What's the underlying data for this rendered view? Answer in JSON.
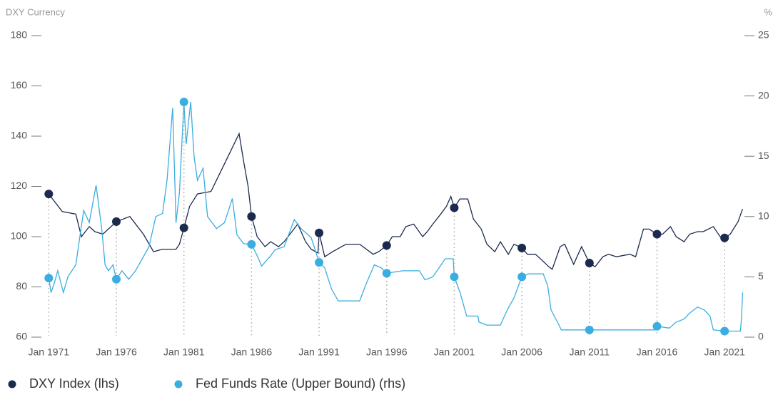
{
  "chart_data": {
    "type": "line",
    "y_label": "DXY Currency",
    "y2_label": "%",
    "xlim": [
      "1970-09",
      "2022-06"
    ],
    "xticks": [
      {
        "value": "1971-01",
        "label": "Jan 1971"
      },
      {
        "value": "1976-01",
        "label": "Jan 1976"
      },
      {
        "value": "1981-01",
        "label": "Jan 1981"
      },
      {
        "value": "1986-01",
        "label": "Jan 1986"
      },
      {
        "value": "1991-01",
        "label": "Jan 1991"
      },
      {
        "value": "1996-01",
        "label": "Jan 1996"
      },
      {
        "value": "2001-01",
        "label": "Jan 2001"
      },
      {
        "value": "2006-01",
        "label": "Jan 2006"
      },
      {
        "value": "2011-01",
        "label": "Jan 2011"
      },
      {
        "value": "2016-01",
        "label": "Jan 2016"
      },
      {
        "value": "2021-01",
        "label": "Jan 2021"
      }
    ],
    "ylim": [
      60,
      180
    ],
    "yticks": [
      60,
      80,
      100,
      120,
      140,
      160,
      180
    ],
    "y2lim": [
      0,
      25
    ],
    "y2ticks": [
      0,
      5,
      10,
      15,
      20,
      25
    ],
    "series": [
      {
        "name": "DXY Index (lhs)",
        "color": "#1b2a4e",
        "axis": "y",
        "x": [
          "1971-01",
          "1972-01",
          "1973-01",
          "1973-06",
          "1974-01",
          "1974-06",
          "1975-01",
          "1976-01",
          "1977-01",
          "1978-01",
          "1978-10",
          "1979-06",
          "1980-06",
          "1980-09",
          "1981-01",
          "1981-06",
          "1982-01",
          "1983-01",
          "1984-01",
          "1985-02",
          "1985-06",
          "1985-10",
          "1986-01",
          "1986-06",
          "1987-01",
          "1987-06",
          "1988-01",
          "1988-06",
          "1989-06",
          "1990-01",
          "1990-06",
          "1990-12",
          "1991-01",
          "1991-06",
          "1992-01",
          "1992-09",
          "1993-01",
          "1994-01",
          "1995-01",
          "1995-06",
          "1996-01",
          "1996-06",
          "1997-01",
          "1997-06",
          "1998-01",
          "1998-09",
          "1999-01",
          "1999-06",
          "2000-01",
          "2000-06",
          "2000-10",
          "2001-01",
          "2001-06",
          "2002-01",
          "2002-06",
          "2003-01",
          "2003-06",
          "2004-01",
          "2004-06",
          "2005-01",
          "2005-06",
          "2006-01",
          "2006-06",
          "2007-01",
          "2007-06",
          "2008-01",
          "2008-04",
          "2008-11",
          "2009-03",
          "2009-11",
          "2010-06",
          "2011-01",
          "2011-06",
          "2012-01",
          "2012-06",
          "2013-01",
          "2014-01",
          "2014-06",
          "2015-01",
          "2015-06",
          "2016-01",
          "2016-06",
          "2017-01",
          "2017-06",
          "2018-01",
          "2018-06",
          "2019-01",
          "2019-06",
          "2020-03",
          "2020-09",
          "2021-01",
          "2021-06",
          "2022-01",
          "2022-05"
        ],
        "values": [
          117,
          110,
          109,
          100,
          104,
          102,
          101,
          106,
          108,
          101,
          94,
          95,
          95,
          97,
          103.5,
          112,
          117,
          118,
          129,
          141,
          130,
          120,
          108,
          100,
          96,
          98,
          96,
          98,
          105,
          98,
          95,
          93.5,
          101.5,
          92,
          94,
          96,
          97,
          97,
          93,
          94,
          96.5,
          100,
          100,
          104,
          105,
          100,
          102,
          105,
          109,
          112,
          116,
          111.5,
          115,
          115,
          107,
          103,
          97,
          94,
          98,
          93,
          97,
          95.5,
          93,
          93,
          91,
          88,
          87,
          96,
          97,
          89,
          96,
          89.5,
          88,
          92,
          93,
          92,
          93,
          92,
          103,
          103,
          101,
          101,
          104,
          100,
          98,
          101,
          102,
          102,
          104,
          100,
          99.5,
          101,
          106,
          111
        ]
      },
      {
        "name": "Fed Funds Rate (Upper Bound) (rhs)",
        "color": "#3aaee0",
        "axis": "y2",
        "x": [
          "1971-01",
          "1971-03",
          "1971-06",
          "1971-09",
          "1972-02",
          "1972-06",
          "1973-01",
          "1973-08",
          "1974-01",
          "1974-07",
          "1974-12",
          "1975-03",
          "1975-06",
          "1975-10",
          "1976-01",
          "1976-06",
          "1976-12",
          "1977-06",
          "1977-12",
          "1978-06",
          "1978-12",
          "1979-06",
          "1979-10",
          "1980-03",
          "1980-06",
          "1980-09",
          "1981-01",
          "1981-03",
          "1981-07",
          "1981-10",
          "1982-01",
          "1982-06",
          "1982-10",
          "1983-06",
          "1984-01",
          "1984-08",
          "1984-12",
          "1985-06",
          "1986-01",
          "1986-06",
          "1986-10",
          "1987-06",
          "1987-10",
          "1988-06",
          "1989-03",
          "1989-09",
          "1990-06",
          "1991-01",
          "1991-06",
          "1991-12",
          "1992-06",
          "1993-06",
          "1994-01",
          "1994-06",
          "1995-02",
          "1995-08",
          "1996-01",
          "1997-03",
          "1998-06",
          "1998-11",
          "1999-06",
          "2000-05",
          "2000-12",
          "2001-01",
          "2001-06",
          "2001-12",
          "2002-10",
          "2002-11",
          "2003-06",
          "2004-06",
          "2004-12",
          "2005-06",
          "2006-01",
          "2006-07",
          "2007-08",
          "2007-12",
          "2008-03",
          "2008-10",
          "2008-12",
          "2011-01",
          "2015-12",
          "2016-01",
          "2016-12",
          "2017-06",
          "2018-01",
          "2018-06",
          "2019-01",
          "2019-07",
          "2019-12",
          "2020-03",
          "2021-01",
          "2022-01",
          "2022-03",
          "2022-04",
          "2022-05"
        ],
        "values": [
          4.9,
          3.7,
          4.5,
          5.5,
          3.7,
          5,
          6,
          10.5,
          9.5,
          12.6,
          9,
          6,
          5.5,
          6,
          4.8,
          5.5,
          4.8,
          5.5,
          6.5,
          7.5,
          10,
          10.25,
          13,
          19,
          9.5,
          12,
          19.5,
          16,
          19.5,
          15,
          13,
          14,
          10,
          9,
          9.5,
          11.5,
          8.5,
          7.75,
          7.7,
          6.75,
          5.9,
          6.75,
          7.25,
          7.5,
          9.75,
          9,
          8.25,
          6.2,
          5.75,
          4,
          3,
          3,
          3,
          4.25,
          6,
          5.75,
          5.3,
          5.5,
          5.5,
          4.75,
          5,
          6.5,
          6.5,
          5,
          3.75,
          1.75,
          1.75,
          1.25,
          1,
          1,
          2.25,
          3.25,
          5,
          5.25,
          5.25,
          4.25,
          2.25,
          1,
          0.6,
          0.6,
          0.6,
          0.9,
          0.75,
          1.25,
          1.5,
          2,
          2.5,
          2.25,
          1.75,
          0.6,
          0.5,
          0.5,
          0.5,
          1.5,
          3.7
        ]
      }
    ]
  }
}
